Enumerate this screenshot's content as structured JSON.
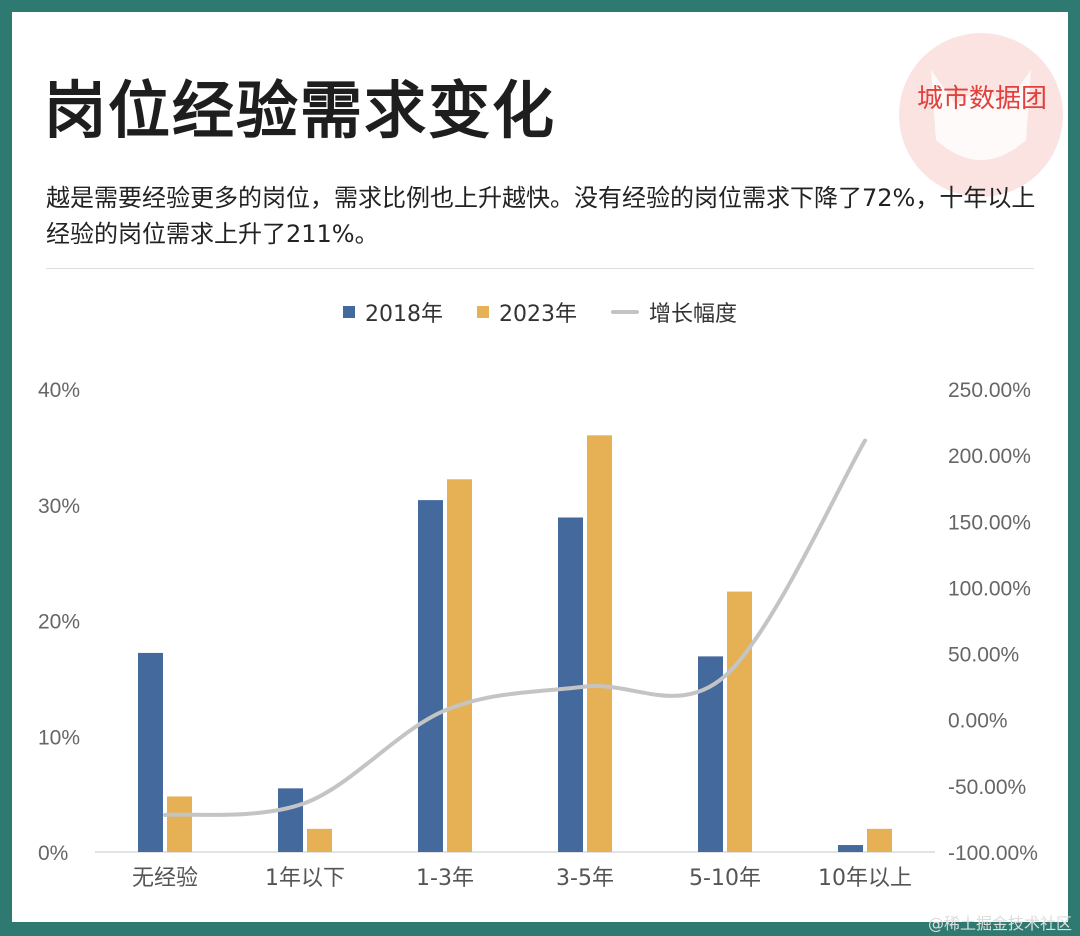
{
  "title": "岗位经验需求变化",
  "brand": "城市数据团",
  "subtitle": "越是需要经验更多的岗位，需求比例也上升越快。没有经验的岗位需求下降了72%，十年以上经验的岗位需求上升了211%。",
  "watermark": "@稀土掘金技术社区",
  "colors": {
    "s2018": "#44699c",
    "s2023": "#e6b055",
    "growth": "#c4c4c4",
    "frame": "#2f7a70",
    "brand": "#e0413c"
  },
  "chart_data": {
    "type": "bar",
    "categories": [
      "无经验",
      "1年以下",
      "1-3年",
      "3-5年",
      "5-10年",
      "10年以上"
    ],
    "series": [
      {
        "name": "2018年",
        "type": "bar",
        "axis": "left",
        "values": [
          17.2,
          5.5,
          30.4,
          28.9,
          16.9,
          0.6
        ]
      },
      {
        "name": "2023年",
        "type": "bar",
        "axis": "left",
        "values": [
          4.8,
          2.0,
          32.2,
          36.0,
          22.5,
          2.0
        ]
      },
      {
        "name": "增长幅度",
        "type": "line",
        "smooth": true,
        "axis": "right",
        "values": [
          -72,
          -63,
          7,
          25,
          33,
          211
        ]
      }
    ],
    "ylim": [
      0,
      40
    ],
    "yticks": [
      "0%",
      "10%",
      "20%",
      "30%",
      "40%"
    ],
    "y2lim": [
      -100,
      250
    ],
    "y2ticks": [
      "-100.00%",
      "-50.00%",
      "0.00%",
      "50.00%",
      "100.00%",
      "150.00%",
      "200.00%",
      "250.00%"
    ],
    "legend": "top",
    "grid": false
  }
}
